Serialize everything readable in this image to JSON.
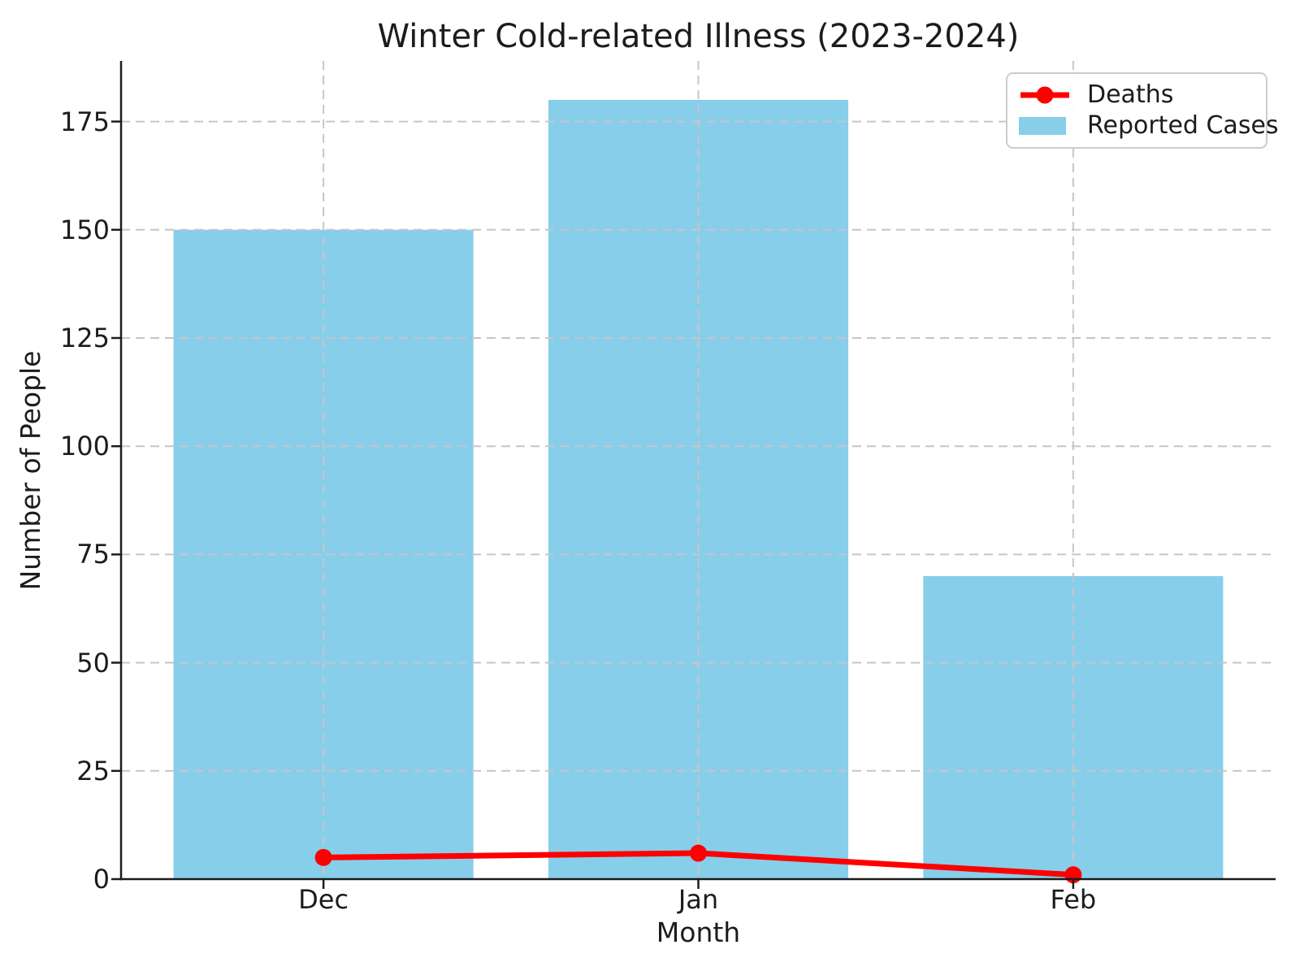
{
  "chart_data": {
    "type": "bar",
    "title": "Winter Cold-related Illness (2023-2024)",
    "xlabel": "Month",
    "ylabel": "Number of People",
    "categories": [
      "Dec",
      "Jan",
      "Feb"
    ],
    "series": [
      {
        "name": "Reported Cases",
        "type": "bar",
        "color": "#87CEEB",
        "values": [
          150,
          180,
          70
        ]
      },
      {
        "name": "Deaths",
        "type": "line",
        "color": "#FF0000",
        "marker": "circle",
        "values": [
          5,
          6,
          1
        ]
      }
    ],
    "ylim": [
      0,
      189
    ],
    "yticks": [
      0,
      25,
      50,
      75,
      100,
      125,
      150,
      175
    ],
    "grid": {
      "show": true,
      "axis": "both",
      "linestyle": "dashed",
      "color": "#c6c6c6"
    },
    "legend": {
      "position": "upper right",
      "entries": [
        "Deaths",
        "Reported Cases"
      ]
    },
    "axis_color": "#1c1c1c",
    "background": "#ffffff"
  }
}
